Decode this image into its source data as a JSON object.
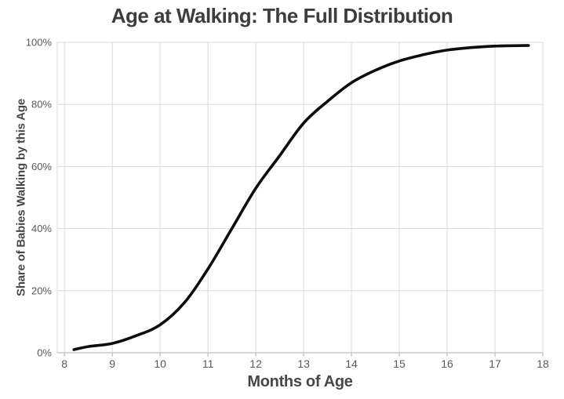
{
  "chart_data": {
    "type": "line",
    "title": "Age at Walking: The Full Distribution",
    "xlabel": "Months of Age",
    "ylabel": "Share of Babies Walking by this Age",
    "xlim": [
      7.85,
      18
    ],
    "ylim": [
      0,
      100
    ],
    "grid": true,
    "legend": "none",
    "x_ticks": [
      {
        "value": 8,
        "label": "8"
      },
      {
        "value": 9,
        "label": "9"
      },
      {
        "value": 10,
        "label": "10"
      },
      {
        "value": 11,
        "label": "11"
      },
      {
        "value": 12,
        "label": "12"
      },
      {
        "value": 13,
        "label": "13"
      },
      {
        "value": 14,
        "label": "14"
      },
      {
        "value": 15,
        "label": "15"
      },
      {
        "value": 16,
        "label": "16"
      },
      {
        "value": 17,
        "label": "17"
      },
      {
        "value": 18,
        "label": "18"
      }
    ],
    "y_ticks": [
      {
        "value": 0,
        "label": "0%"
      },
      {
        "value": 20,
        "label": "20%"
      },
      {
        "value": 40,
        "label": "40%"
      },
      {
        "value": 60,
        "label": "60%"
      },
      {
        "value": 80,
        "label": "80%"
      },
      {
        "value": 100,
        "label": "100%"
      }
    ],
    "series": [
      {
        "name": "share-of-babies-walking",
        "color": "#0d0d0d",
        "points": [
          [
            8.2,
            1
          ],
          [
            8.5,
            2
          ],
          [
            9,
            3
          ],
          [
            9.5,
            5.5
          ],
          [
            10,
            9
          ],
          [
            10.5,
            16
          ],
          [
            11,
            27
          ],
          [
            11.5,
            40
          ],
          [
            12,
            53
          ],
          [
            12.5,
            63.5
          ],
          [
            13,
            74
          ],
          [
            13.5,
            81
          ],
          [
            14,
            87
          ],
          [
            14.5,
            91
          ],
          [
            15,
            94
          ],
          [
            15.5,
            96
          ],
          [
            16,
            97.5
          ],
          [
            16.5,
            98.3
          ],
          [
            17,
            98.8
          ],
          [
            17.7,
            99
          ]
        ]
      }
    ],
    "colors": {
      "title": "#3d3d3d",
      "axis_title": "#474747",
      "tick_text": "#595959",
      "gridline": "#d9d9d9",
      "axis_line": "#bfbfbf",
      "curve": "#0d0d0d",
      "background": "#ffffff"
    }
  }
}
